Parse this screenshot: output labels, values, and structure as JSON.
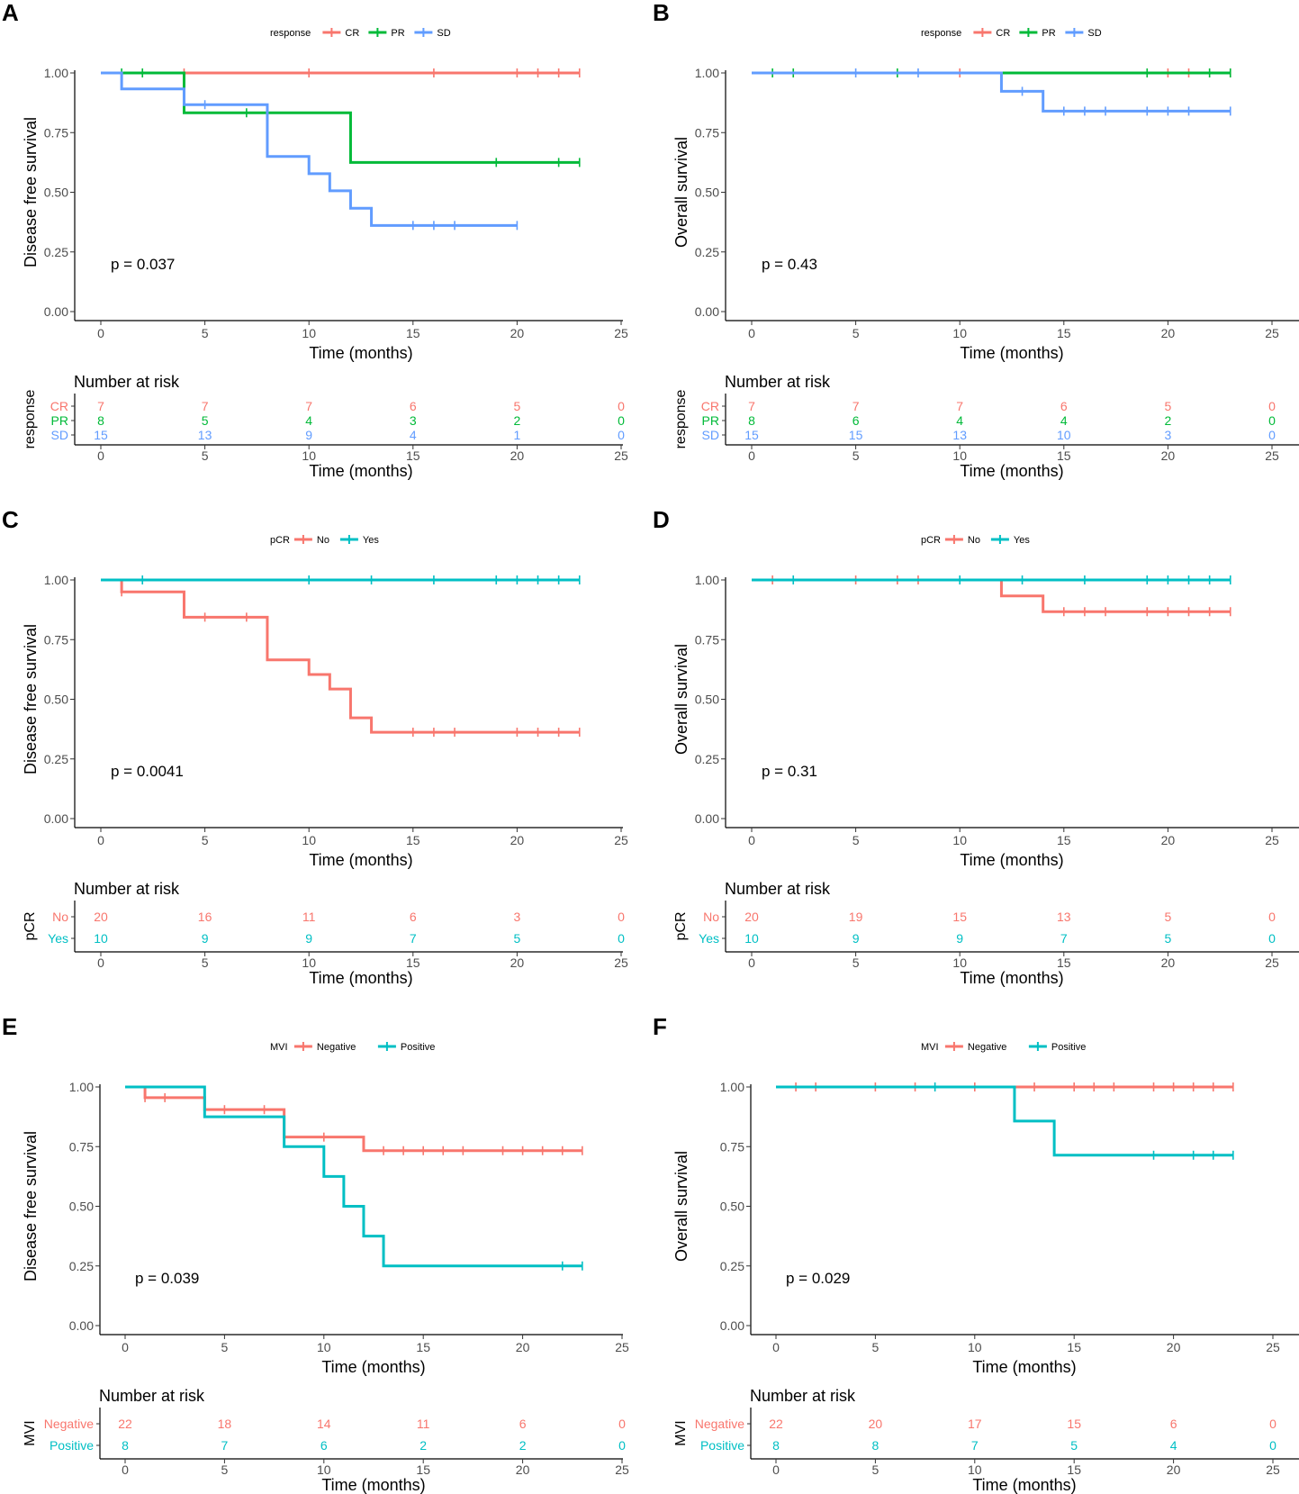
{
  "chart_data": [
    {
      "panel": "A",
      "type": "line",
      "ylabel": "Disease free survival",
      "xlabel": "Time (months)",
      "xlim": [
        0,
        25
      ],
      "ylim": [
        0,
        1
      ],
      "xticks": [
        "0",
        "5",
        "10",
        "15",
        "20",
        "25"
      ],
      "yticks": [
        "0.00",
        "0.25",
        "0.50",
        "0.75",
        "1.00"
      ],
      "legend_title": "response",
      "pvalue": "p = 0.037",
      "series": [
        {
          "name": "CR",
          "color": "#F8766D",
          "steps": [
            [
              0,
              1.0
            ],
            [
              23,
              1.0
            ]
          ],
          "censor": [
            [
              4,
              1.0
            ],
            [
              10,
              1.0
            ],
            [
              16,
              1.0
            ],
            [
              20,
              1.0
            ],
            [
              21,
              1.0
            ],
            [
              22,
              1.0
            ],
            [
              23,
              1.0
            ]
          ]
        },
        {
          "name": "PR",
          "color": "#00BA38",
          "steps": [
            [
              0,
              1.0
            ],
            [
              4,
              0.833
            ],
            [
              12,
              0.625
            ],
            [
              23,
              0.625
            ]
          ],
          "censor": [
            [
              1,
              1.0
            ],
            [
              2,
              1.0
            ],
            [
              7,
              0.833
            ],
            [
              19,
              0.625
            ],
            [
              22,
              0.625
            ],
            [
              23,
              0.625
            ]
          ]
        },
        {
          "name": "SD",
          "color": "#619CFF",
          "steps": [
            [
              0,
              1.0
            ],
            [
              1,
              0.933
            ],
            [
              4,
              0.867
            ],
            [
              8,
              0.65
            ],
            [
              10,
              0.578
            ],
            [
              11,
              0.506
            ],
            [
              12,
              0.433
            ],
            [
              13,
              0.361
            ],
            [
              20,
              0.361
            ]
          ],
          "censor": [
            [
              5,
              0.867
            ],
            [
              15,
              0.361
            ],
            [
              16,
              0.361
            ],
            [
              17,
              0.361
            ],
            [
              20,
              0.361
            ]
          ]
        }
      ],
      "risk": {
        "title": "Number at risk",
        "ylabel": "response",
        "xlabel": "Time (months)",
        "groups": [
          "CR",
          "PR",
          "SD"
        ],
        "values": [
          [
            "7",
            "7",
            "7",
            "6",
            "5",
            "0"
          ],
          [
            "8",
            "5",
            "4",
            "3",
            "2",
            "0"
          ],
          [
            "15",
            "13",
            "9",
            "4",
            "1",
            "0"
          ]
        ]
      }
    },
    {
      "panel": "B",
      "type": "line",
      "ylabel": "Overall survival",
      "xlabel": "Time (months)",
      "xlim": [
        0,
        25
      ],
      "ylim": [
        0,
        1
      ],
      "xticks": [
        "0",
        "5",
        "10",
        "15",
        "20",
        "25"
      ],
      "yticks": [
        "0.00",
        "0.25",
        "0.50",
        "0.75",
        "1.00"
      ],
      "legend_title": "response",
      "pvalue": "p = 0.43",
      "series": [
        {
          "name": "CR",
          "color": "#F8766D",
          "steps": [
            [
              0,
              1.0
            ],
            [
              23,
              1.0
            ]
          ],
          "censor": [
            [
              10,
              1.0
            ],
            [
              20,
              1.0
            ],
            [
              21,
              1.0
            ],
            [
              23,
              1.0
            ]
          ]
        },
        {
          "name": "PR",
          "color": "#00BA38",
          "steps": [
            [
              0,
              1.0
            ],
            [
              23,
              1.0
            ]
          ],
          "censor": [
            [
              1,
              1.0
            ],
            [
              2,
              1.0
            ],
            [
              7,
              1.0
            ],
            [
              19,
              1.0
            ],
            [
              22,
              1.0
            ],
            [
              23,
              1.0
            ]
          ]
        },
        {
          "name": "SD",
          "color": "#619CFF",
          "steps": [
            [
              0,
              1.0
            ],
            [
              12,
              0.923
            ],
            [
              14,
              0.84
            ],
            [
              23,
              0.84
            ]
          ],
          "censor": [
            [
              5,
              1.0
            ],
            [
              8,
              1.0
            ],
            [
              13,
              0.923
            ],
            [
              15,
              0.84
            ],
            [
              16,
              0.84
            ],
            [
              17,
              0.84
            ],
            [
              19,
              0.84
            ],
            [
              20,
              0.84
            ],
            [
              21,
              0.84
            ],
            [
              23,
              0.84
            ]
          ]
        }
      ],
      "risk": {
        "title": "Number at risk",
        "ylabel": "response",
        "xlabel": "Time (months)",
        "groups": [
          "CR",
          "PR",
          "SD"
        ],
        "values": [
          [
            "7",
            "7",
            "7",
            "6",
            "5",
            "0"
          ],
          [
            "8",
            "6",
            "4",
            "4",
            "2",
            "0"
          ],
          [
            "15",
            "15",
            "13",
            "10",
            "3",
            "0"
          ]
        ]
      }
    },
    {
      "panel": "C",
      "type": "line",
      "ylabel": "Disease free survival",
      "xlabel": "Time (months)",
      "xlim": [
        0,
        25
      ],
      "ylim": [
        0,
        1
      ],
      "xticks": [
        "0",
        "5",
        "10",
        "15",
        "20",
        "25"
      ],
      "yticks": [
        "0.00",
        "0.25",
        "0.50",
        "0.75",
        "1.00"
      ],
      "legend_title": "pCR",
      "pvalue": "p = 0.0041",
      "series": [
        {
          "name": "No",
          "color": "#F8766D",
          "steps": [
            [
              0,
              1.0
            ],
            [
              1,
              0.95
            ],
            [
              4,
              0.844
            ],
            [
              8,
              0.665
            ],
            [
              10,
              0.604
            ],
            [
              11,
              0.543
            ],
            [
              12,
              0.422
            ],
            [
              13,
              0.362
            ],
            [
              23,
              0.362
            ]
          ],
          "censor": [
            [
              1,
              0.95
            ],
            [
              5,
              0.844
            ],
            [
              7,
              0.844
            ],
            [
              15,
              0.362
            ],
            [
              16,
              0.362
            ],
            [
              17,
              0.362
            ],
            [
              20,
              0.362
            ],
            [
              21,
              0.362
            ],
            [
              22,
              0.362
            ],
            [
              23,
              0.362
            ]
          ]
        },
        {
          "name": "Yes",
          "color": "#00BFC4",
          "steps": [
            [
              0,
              1.0
            ],
            [
              23,
              1.0
            ]
          ],
          "censor": [
            [
              2,
              1.0
            ],
            [
              10,
              1.0
            ],
            [
              13,
              1.0
            ],
            [
              16,
              1.0
            ],
            [
              19,
              1.0
            ],
            [
              20,
              1.0
            ],
            [
              21,
              1.0
            ],
            [
              22,
              1.0
            ],
            [
              23,
              1.0
            ]
          ]
        }
      ],
      "risk": {
        "title": "Number at risk",
        "ylabel": "pCR",
        "xlabel": "Time (months)",
        "groups": [
          "No",
          "Yes"
        ],
        "values": [
          [
            "20",
            "16",
            "11",
            "6",
            "3",
            "0"
          ],
          [
            "10",
            "9",
            "9",
            "7",
            "5",
            "0"
          ]
        ]
      }
    },
    {
      "panel": "D",
      "type": "line",
      "ylabel": "Overall survival",
      "xlabel": "Time (months)",
      "xlim": [
        0,
        25
      ],
      "ylim": [
        0,
        1
      ],
      "xticks": [
        "0",
        "5",
        "10",
        "15",
        "20",
        "25"
      ],
      "yticks": [
        "0.00",
        "0.25",
        "0.50",
        "0.75",
        "1.00"
      ],
      "legend_title": "pCR",
      "pvalue": "p = 0.31",
      "series": [
        {
          "name": "No",
          "color": "#F8766D",
          "steps": [
            [
              0,
              1.0
            ],
            [
              12,
              0.933
            ],
            [
              14,
              0.867
            ],
            [
              23,
              0.867
            ]
          ],
          "censor": [
            [
              1,
              1.0
            ],
            [
              5,
              1.0
            ],
            [
              7,
              1.0
            ],
            [
              8,
              1.0
            ],
            [
              15,
              0.867
            ],
            [
              16,
              0.867
            ],
            [
              17,
              0.867
            ],
            [
              19,
              0.867
            ],
            [
              20,
              0.867
            ],
            [
              21,
              0.867
            ],
            [
              22,
              0.867
            ],
            [
              23,
              0.867
            ]
          ]
        },
        {
          "name": "Yes",
          "color": "#00BFC4",
          "steps": [
            [
              0,
              1.0
            ],
            [
              23,
              1.0
            ]
          ],
          "censor": [
            [
              2,
              1.0
            ],
            [
              10,
              1.0
            ],
            [
              13,
              1.0
            ],
            [
              16,
              1.0
            ],
            [
              19,
              1.0
            ],
            [
              20,
              1.0
            ],
            [
              21,
              1.0
            ],
            [
              22,
              1.0
            ],
            [
              23,
              1.0
            ]
          ]
        }
      ],
      "risk": {
        "title": "Number at risk",
        "ylabel": "pCR",
        "xlabel": "Time (months)",
        "groups": [
          "No",
          "Yes"
        ],
        "values": [
          [
            "20",
            "19",
            "15",
            "13",
            "5",
            "0"
          ],
          [
            "10",
            "9",
            "9",
            "7",
            "5",
            "0"
          ]
        ]
      }
    },
    {
      "panel": "E",
      "type": "line",
      "ylabel": "Disease free survival",
      "xlabel": "Time (months)",
      "xlim": [
        0,
        25
      ],
      "ylim": [
        0,
        1
      ],
      "xticks": [
        "0",
        "5",
        "10",
        "15",
        "20",
        "25"
      ],
      "yticks": [
        "0.00",
        "0.25",
        "0.50",
        "0.75",
        "1.00"
      ],
      "legend_title": "MVI",
      "pvalue": "p = 0.039",
      "series": [
        {
          "name": "Negative",
          "color": "#F8766D",
          "steps": [
            [
              0,
              1.0
            ],
            [
              1,
              0.955
            ],
            [
              4,
              0.905
            ],
            [
              8,
              0.79
            ],
            [
              12,
              0.733
            ],
            [
              23,
              0.733
            ]
          ],
          "censor": [
            [
              1,
              0.955
            ],
            [
              2,
              0.955
            ],
            [
              5,
              0.905
            ],
            [
              7,
              0.905
            ],
            [
              10,
              0.79
            ],
            [
              13,
              0.733
            ],
            [
              14,
              0.733
            ],
            [
              15,
              0.733
            ],
            [
              16,
              0.733
            ],
            [
              17,
              0.733
            ],
            [
              19,
              0.733
            ],
            [
              20,
              0.733
            ],
            [
              21,
              0.733
            ],
            [
              22,
              0.733
            ],
            [
              23,
              0.733
            ]
          ]
        },
        {
          "name": "Positive",
          "color": "#00BFC4",
          "steps": [
            [
              0,
              1.0
            ],
            [
              4,
              0.875
            ],
            [
              8,
              0.75
            ],
            [
              10,
              0.625
            ],
            [
              11,
              0.5
            ],
            [
              12,
              0.375
            ],
            [
              13,
              0.25
            ],
            [
              23,
              0.25
            ]
          ],
          "censor": [
            [
              22,
              0.25
            ],
            [
              23,
              0.25
            ]
          ]
        }
      ],
      "risk": {
        "title": "Number at risk",
        "ylabel": "MVI",
        "xlabel": "Time (months)",
        "groups": [
          "Negative",
          "Positive"
        ],
        "values": [
          [
            "22",
            "18",
            "14",
            "11",
            "6",
            "0"
          ],
          [
            "8",
            "7",
            "6",
            "2",
            "2",
            "0"
          ]
        ]
      }
    },
    {
      "panel": "F",
      "type": "line",
      "ylabel": "Overall survival",
      "xlabel": "Time (months)",
      "xlim": [
        0,
        25
      ],
      "ylim": [
        0,
        1
      ],
      "xticks": [
        "0",
        "5",
        "10",
        "15",
        "20",
        "25"
      ],
      "yticks": [
        "0.00",
        "0.25",
        "0.50",
        "0.75",
        "1.00"
      ],
      "legend_title": "MVI",
      "pvalue": "p = 0.029",
      "series": [
        {
          "name": "Negative",
          "color": "#F8766D",
          "steps": [
            [
              0,
              1.0
            ],
            [
              23,
              1.0
            ]
          ],
          "censor": [
            [
              1,
              1.0
            ],
            [
              2,
              1.0
            ],
            [
              5,
              1.0
            ],
            [
              7,
              1.0
            ],
            [
              10,
              1.0
            ],
            [
              13,
              1.0
            ],
            [
              15,
              1.0
            ],
            [
              16,
              1.0
            ],
            [
              17,
              1.0
            ],
            [
              19,
              1.0
            ],
            [
              20,
              1.0
            ],
            [
              21,
              1.0
            ],
            [
              22,
              1.0
            ],
            [
              23,
              1.0
            ]
          ]
        },
        {
          "name": "Positive",
          "color": "#00BFC4",
          "steps": [
            [
              0,
              1.0
            ],
            [
              12,
              0.857
            ],
            [
              14,
              0.714
            ],
            [
              23,
              0.714
            ]
          ],
          "censor": [
            [
              8,
              1.0
            ],
            [
              19,
              0.714
            ],
            [
              21,
              0.714
            ],
            [
              22,
              0.714
            ],
            [
              23,
              0.714
            ]
          ]
        }
      ],
      "risk": {
        "title": "Number at risk",
        "ylabel": "MVI",
        "xlabel": "Time (months)",
        "groups": [
          "Negative",
          "Positive"
        ],
        "values": [
          [
            "22",
            "20",
            "17",
            "15",
            "6",
            "0"
          ],
          [
            "8",
            "8",
            "7",
            "5",
            "4",
            "0"
          ]
        ]
      }
    }
  ]
}
